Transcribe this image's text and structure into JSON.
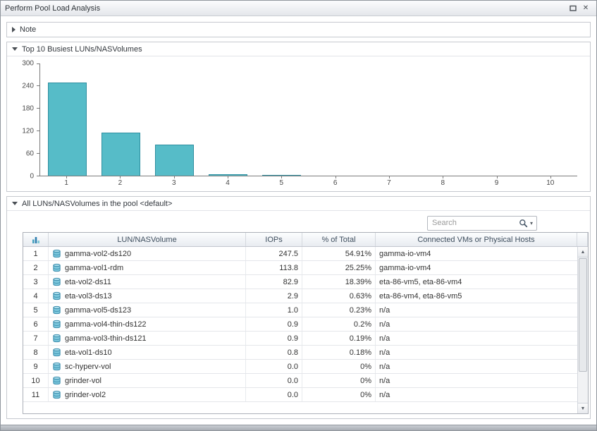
{
  "window": {
    "title": "Perform Pool Load Analysis"
  },
  "icons": {
    "scroll_up": "▲",
    "scroll_down": "▼",
    "close": "✕",
    "search_caret": "▾"
  },
  "sections": {
    "note": {
      "label": "Note",
      "collapsed": true
    },
    "chart": {
      "label": "Top 10 Busiest LUNs/NASVolumes",
      "collapsed": false
    },
    "pool": {
      "label": "All LUNs/NASVolumes in the pool <default>",
      "collapsed": false
    }
  },
  "search": {
    "placeholder": "Search"
  },
  "chart_data": {
    "type": "bar",
    "title": "Top 10 Busiest LUNs/NASVolumes",
    "categories": [
      "1",
      "2",
      "3",
      "4",
      "5",
      "6",
      "7",
      "8",
      "9",
      "10"
    ],
    "values": [
      247.5,
      113.8,
      82.9,
      2.9,
      1.0,
      0.9,
      0.9,
      0.8,
      0.0,
      0.0
    ],
    "xlabel": "",
    "ylabel": "",
    "ylim": [
      0,
      300
    ],
    "yticks": [
      0,
      60,
      120,
      180,
      240,
      300
    ],
    "grid": false,
    "legend": "none",
    "bar_color": "#56bcc8",
    "bar_border": "#2e8fa0"
  },
  "table": {
    "columns": [
      "",
      "LUN/NASVolume",
      "IOPs",
      "% of Total",
      "Connected VMs or Physical Hosts"
    ],
    "rows": [
      {
        "num": "1",
        "name": "gamma-vol2-ds120",
        "iops": "247.5",
        "pct": "54.91%",
        "vms": "gamma-io-vm4"
      },
      {
        "num": "2",
        "name": "gamma-vol1-rdm",
        "iops": "113.8",
        "pct": "25.25%",
        "vms": "gamma-io-vm4"
      },
      {
        "num": "3",
        "name": "eta-vol2-ds11",
        "iops": "82.9",
        "pct": "18.39%",
        "vms": "eta-86-vm5, eta-86-vm4"
      },
      {
        "num": "4",
        "name": "eta-vol3-ds13",
        "iops": "2.9",
        "pct": "0.63%",
        "vms": "eta-86-vm4, eta-86-vm5"
      },
      {
        "num": "5",
        "name": "gamma-vol5-ds123",
        "iops": "1.0",
        "pct": "0.23%",
        "vms": "n/a"
      },
      {
        "num": "6",
        "name": "gamma-vol4-thin-ds122",
        "iops": "0.9",
        "pct": "0.2%",
        "vms": "n/a"
      },
      {
        "num": "7",
        "name": "gamma-vol3-thin-ds121",
        "iops": "0.9",
        "pct": "0.19%",
        "vms": "n/a"
      },
      {
        "num": "8",
        "name": "eta-vol1-ds10",
        "iops": "0.8",
        "pct": "0.18%",
        "vms": "n/a"
      },
      {
        "num": "9",
        "name": "sc-hyperv-vol",
        "iops": "0.0",
        "pct": "0%",
        "vms": "n/a"
      },
      {
        "num": "10",
        "name": "grinder-vol",
        "iops": "0.0",
        "pct": "0%",
        "vms": "n/a"
      },
      {
        "num": "11",
        "name": "grinder-vol2",
        "iops": "0.0",
        "pct": "0%",
        "vms": "n/a"
      }
    ]
  },
  "colors": {
    "accent_teal": "#56bcc8",
    "header_text": "#3e4e5e"
  }
}
